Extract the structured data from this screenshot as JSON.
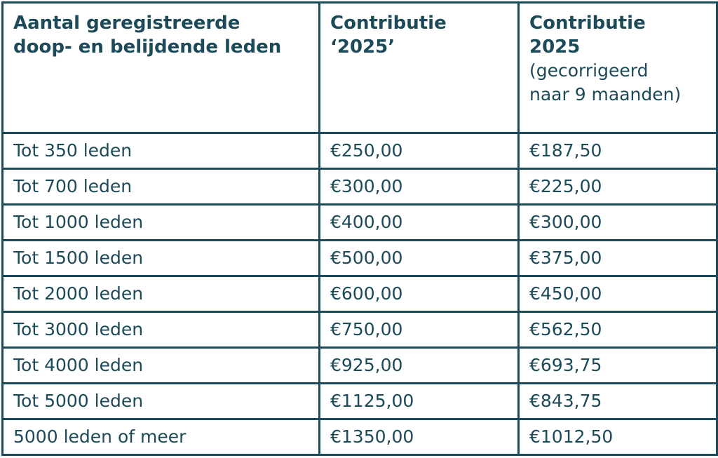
{
  "table": {
    "headers": {
      "col1": [
        "Aantal geregistreerde",
        "doop- en belijdende leden"
      ],
      "col2": [
        "Contributie",
        "‘2025’"
      ],
      "col3": [
        "Contributie",
        "2025"
      ],
      "col3_note": [
        "(gecorrigeerd",
        "naar 9 maanden)"
      ]
    },
    "rows": [
      {
        "members": "Tot 350 leden",
        "fee": "€250,00",
        "corrected": "€187,50"
      },
      {
        "members": "Tot 700 leden",
        "fee": "€300,00",
        "corrected": "€225,00"
      },
      {
        "members": "Tot 1000 leden",
        "fee": "€400,00",
        "corrected": "€300,00"
      },
      {
        "members": "Tot 1500 leden",
        "fee": "€500,00",
        "corrected": "€375,00"
      },
      {
        "members": "Tot 2000 leden",
        "fee": "€600,00",
        "corrected": "€450,00"
      },
      {
        "members": "Tot 3000 leden",
        "fee": "€750,00",
        "corrected": "€562,50"
      },
      {
        "members": "Tot 4000 leden",
        "fee": "€925,00",
        "corrected": "€693,75"
      },
      {
        "members": "Tot 5000 leden",
        "fee": "€1125,00",
        "corrected": "€843,75"
      },
      {
        "members": "5000 leden of meer",
        "fee": "€1350,00",
        "corrected": "€1012,50"
      }
    ]
  },
  "colors": {
    "text": "#1c4a58",
    "border": "#1c4a58",
    "background": "#ffffff"
  }
}
